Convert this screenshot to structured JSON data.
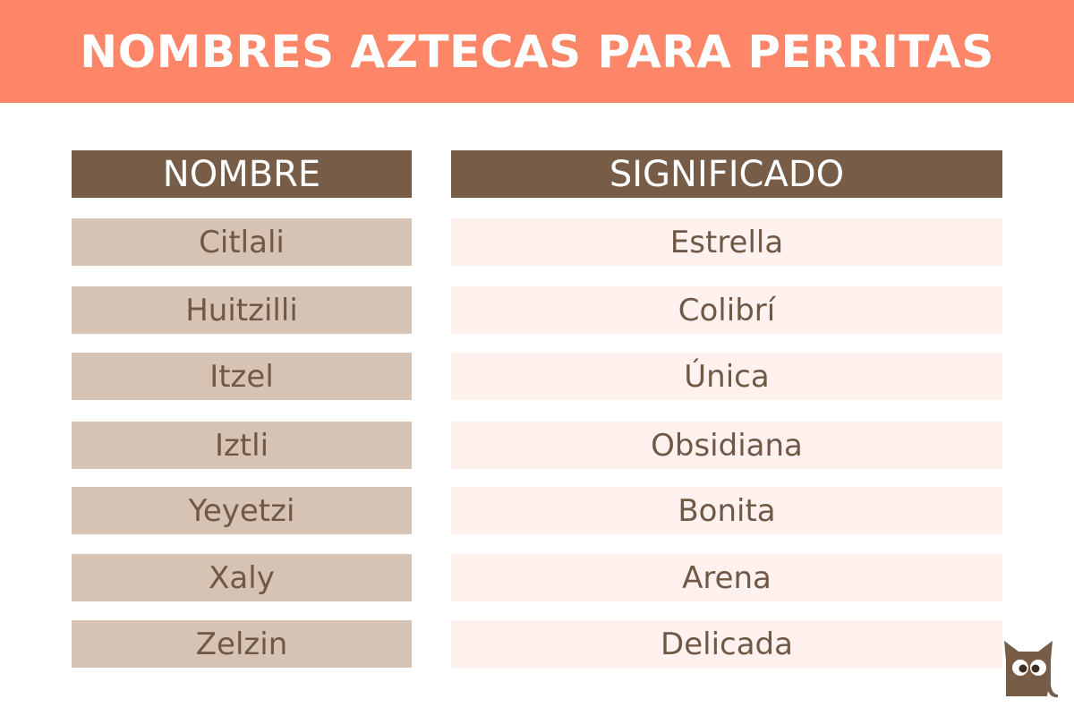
{
  "title": "NOMBRES AZTECAS PARA PERRITAS",
  "headers": {
    "name": "NOMBRE",
    "meaning": "SIGNIFICADO"
  },
  "rows": [
    {
      "name": "Citlali",
      "meaning": "Estrella"
    },
    {
      "name": "Huitzilli",
      "meaning": "Colibrí"
    },
    {
      "name": "Itzel",
      "meaning": "Única"
    },
    {
      "name": "Iztli",
      "meaning": "Obsidiana"
    },
    {
      "name": "Yeyetzi",
      "meaning": "Bonita"
    },
    {
      "name": "Xaly",
      "meaning": "Arena"
    },
    {
      "name": "Zelzin",
      "meaning": "Delicada"
    }
  ],
  "colors": {
    "banner": "#FE8668",
    "header": "#775C47",
    "name_cell": "#D6C3B4",
    "meaning_cell": "#FEF1EE",
    "text": "#6F5846"
  },
  "logo": {
    "icon": "cat-icon"
  }
}
